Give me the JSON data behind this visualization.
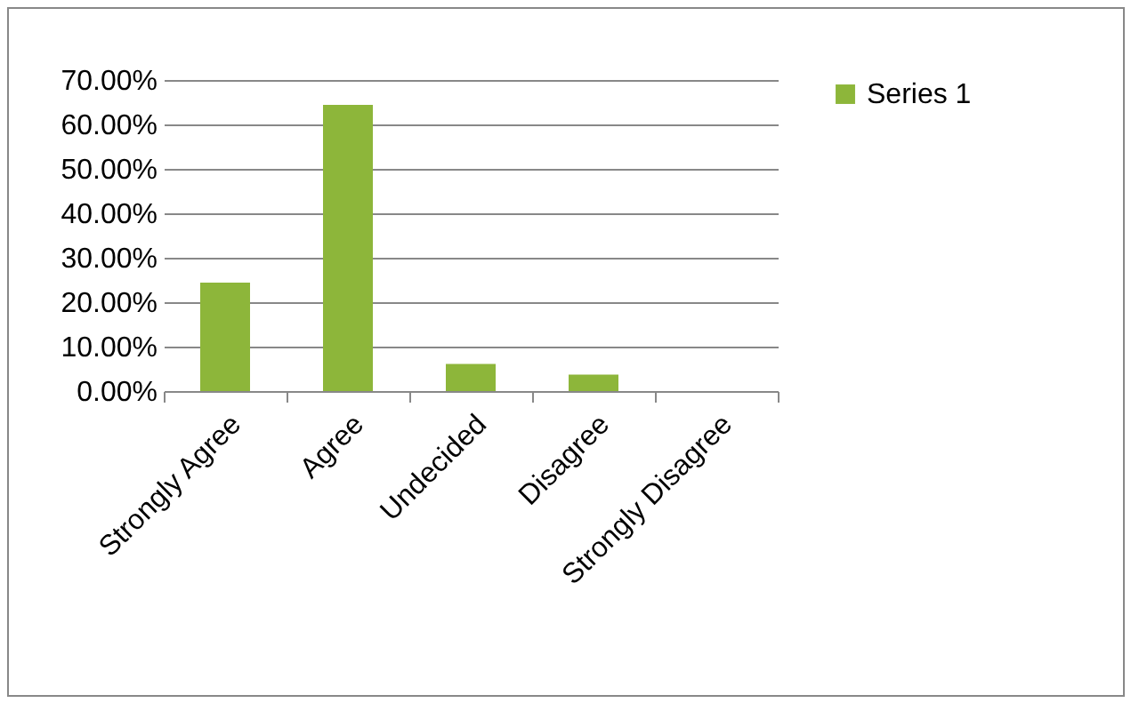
{
  "chart_data": {
    "type": "bar",
    "categories": [
      "Strongly Agree",
      "Agree",
      "Undecided",
      "Disagree",
      "Strongly Disagree"
    ],
    "series": [
      {
        "name": "Series 1",
        "color": "#8db63a",
        "values": [
          24.4,
          64.4,
          6.1,
          3.7,
          0
        ]
      }
    ],
    "ylim": [
      0,
      70
    ],
    "yticks": [
      {
        "value": 0,
        "label": "0.00%"
      },
      {
        "value": 10,
        "label": "10.00%"
      },
      {
        "value": 20,
        "label": "20.00%"
      },
      {
        "value": 30,
        "label": "30.00%"
      },
      {
        "value": 40,
        "label": "40.00%"
      },
      {
        "value": 50,
        "label": "50.00%"
      },
      {
        "value": 60,
        "label": "60.00%"
      },
      {
        "value": 70,
        "label": "70.00%"
      }
    ],
    "grid": "y",
    "legend": "right"
  }
}
